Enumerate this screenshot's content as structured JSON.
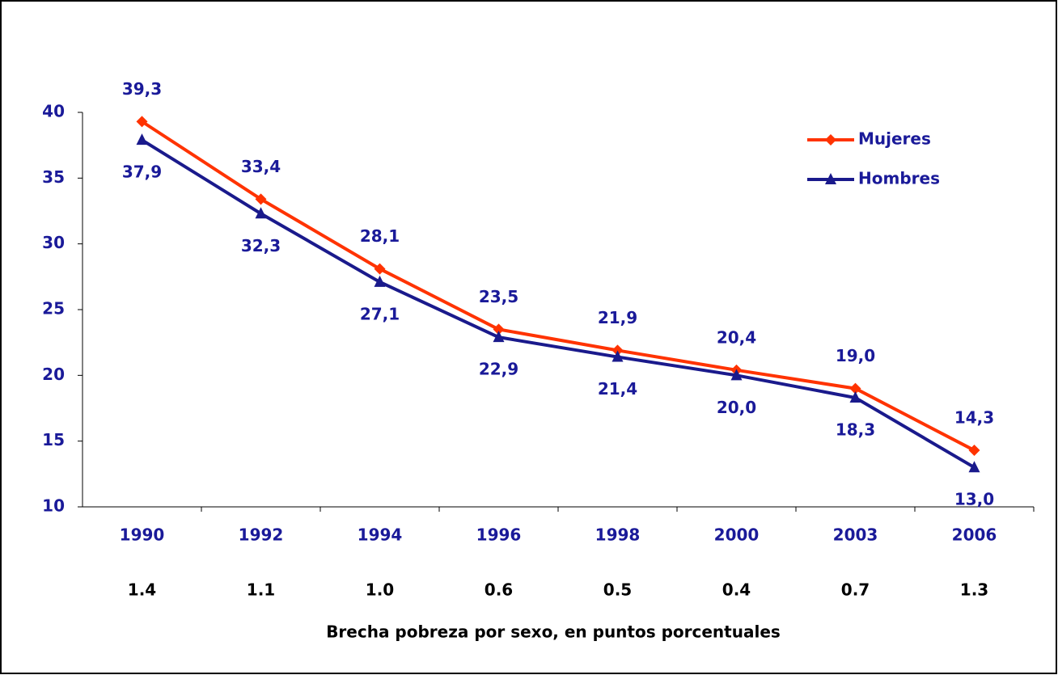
{
  "chart_data": {
    "type": "line",
    "categories": [
      "1990",
      "1992",
      "1994",
      "1996",
      "1998",
      "2000",
      "2003",
      "2006"
    ],
    "series": [
      {
        "name": "Mujeres",
        "color": "#ff3300",
        "marker": "diamond",
        "values": [
          39.3,
          33.4,
          28.1,
          23.5,
          21.9,
          20.4,
          19.0,
          14.3
        ],
        "value_labels": [
          "39,3",
          "33,4",
          "28,1",
          "23,5",
          "21,9",
          "20,4",
          "19,0",
          "14,3"
        ]
      },
      {
        "name": "Hombres",
        "color": "#1a1a8c",
        "marker": "triangle",
        "values": [
          37.9,
          32.3,
          27.1,
          22.9,
          21.4,
          20.0,
          18.3,
          13.0
        ],
        "value_labels": [
          "37,9",
          "32,3",
          "27,1",
          "22,9",
          "21,4",
          "20,0",
          "18,3",
          "13,0"
        ]
      }
    ],
    "ylim": [
      10,
      40
    ],
    "yticks": [
      10,
      15,
      20,
      25,
      30,
      35,
      40
    ],
    "gap_labels": [
      "1.4",
      "1.1",
      "1.0",
      "0.6",
      "0.5",
      "0.4",
      "0.7",
      "1.3"
    ],
    "gap_title": "Brecha pobreza por sexo, en puntos porcentuales",
    "legend": "top-right",
    "grid": false
  }
}
